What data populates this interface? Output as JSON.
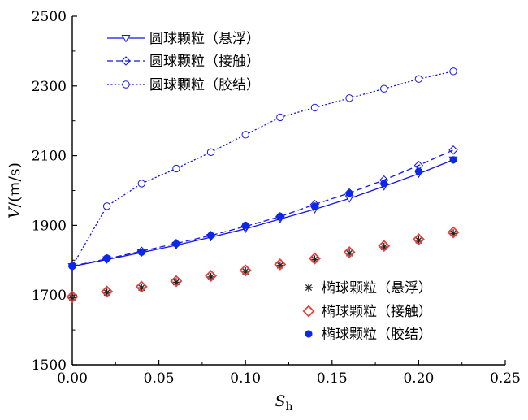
{
  "chart_data": {
    "type": "line",
    "xlabel": "S",
    "xlabel_sub": "h",
    "ylabel": "V/(m/s)",
    "xlim": [
      0,
      0.25
    ],
    "ylim": [
      1500,
      2500
    ],
    "x_ticks": [
      "0.00",
      "0.05",
      "0.10",
      "0.15",
      "0.20",
      "0.25"
    ],
    "y_ticks": [
      "1500",
      "1700",
      "1900",
      "2100",
      "2300",
      "2500"
    ],
    "x": [
      0.0,
      0.02,
      0.04,
      0.06,
      0.08,
      0.1,
      0.12,
      0.14,
      0.16,
      0.18,
      0.2,
      0.22
    ],
    "grid": false,
    "legend_placement": [
      "top-left",
      "bottom-right"
    ],
    "series": [
      {
        "name": "圆球颗粒（悬浮）",
        "style": "solid-line",
        "marker": "triangle-down-open",
        "color": "#1414e6",
        "values": [
          1782,
          1802,
          1822,
          1843,
          1866,
          1890,
          1918,
          1946,
          1977,
          2012,
          2048,
          2088
        ]
      },
      {
        "name": "圆球颗粒（接触）",
        "style": "dashed-line",
        "marker": "diamond-open",
        "color": "#1414e6",
        "values": [
          1783,
          1804,
          1826,
          1848,
          1871,
          1897,
          1925,
          1960,
          1993,
          2030,
          2072,
          2116
        ]
      },
      {
        "name": "圆球颗粒（胶结）",
        "style": "dotted-line",
        "marker": "circle-open",
        "color": "#1414e6",
        "values": [
          1783,
          1955,
          2020,
          2063,
          2110,
          2160,
          2210,
          2238,
          2265,
          2292,
          2320,
          2342
        ]
      },
      {
        "name": "椭球颗粒（悬浮）",
        "style": "markers-only",
        "marker": "asterisk",
        "color": "#222222",
        "values": [
          1692,
          1707,
          1721,
          1737,
          1752,
          1768,
          1785,
          1802,
          1820,
          1838,
          1857,
          1877
        ]
      },
      {
        "name": "椭球颗粒（接触）",
        "style": "markers-only",
        "marker": "diamond-open",
        "color": "#e8413c",
        "values": [
          1695,
          1710,
          1724,
          1740,
          1755,
          1771,
          1788,
          1805,
          1823,
          1841,
          1860,
          1880
        ]
      },
      {
        "name": "椭球颗粒（胶结）",
        "style": "markers-only",
        "marker": "circle-filled",
        "color": "#0a28e6",
        "values": [
          1783,
          1806,
          1823,
          1847,
          1871,
          1900,
          1926,
          1955,
          1992,
          2020,
          2055,
          2088
        ]
      }
    ]
  }
}
